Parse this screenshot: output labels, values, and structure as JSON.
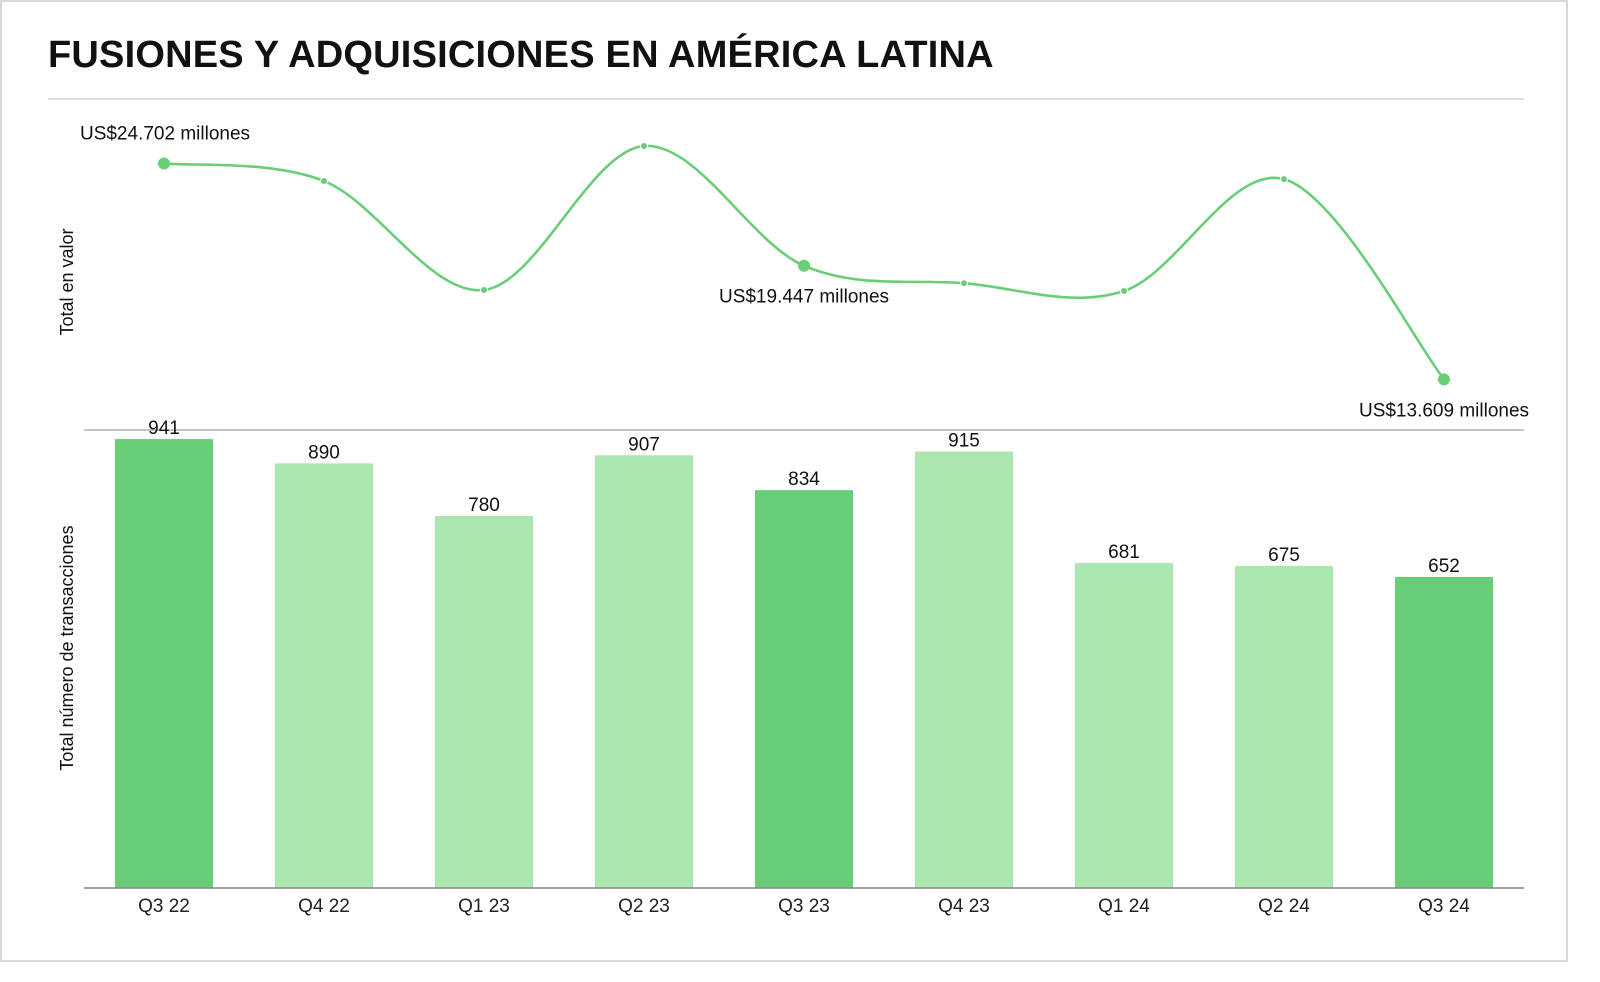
{
  "title": "FUSIONES Y ADQUISICIONES EN AMÉRICA LATINA",
  "colors": {
    "line": "#6acd77",
    "bar_dark": "#68cd78",
    "bar_light": "#abe5b0",
    "axis": "#888888",
    "text": "#111111"
  },
  "chart_data": [
    {
      "type": "line",
      "ylabel": "Total en valor",
      "categories": [
        "Q3 22",
        "Q4 22",
        "Q1 23",
        "Q2 23",
        "Q3 23",
        "Q4 23",
        "Q1 24",
        "Q2 24",
        "Q3 24"
      ],
      "values": [
        24702,
        23800,
        18200,
        25600,
        19447,
        18550,
        18150,
        23900,
        13609
      ],
      "annotations": [
        {
          "index": 0,
          "text": "US$24.702 millones"
        },
        {
          "index": 4,
          "text": "US$19.447 millones"
        },
        {
          "index": 8,
          "text": "US$13.609 millones"
        }
      ],
      "ylim": [
        12000,
        26000
      ],
      "grid": false,
      "legend": "none"
    },
    {
      "type": "bar",
      "ylabel": "Total número de transacciones",
      "categories": [
        "Q3 22",
        "Q4 22",
        "Q1 23",
        "Q2 23",
        "Q3 23",
        "Q4 23",
        "Q1 24",
        "Q2 24",
        "Q3 24"
      ],
      "values": [
        941,
        890,
        780,
        907,
        834,
        915,
        681,
        675,
        652
      ],
      "highlighted": [
        true,
        false,
        false,
        false,
        true,
        false,
        false,
        false,
        true
      ],
      "ylim": [
        0,
        960
      ],
      "grid": false,
      "legend": "none"
    }
  ]
}
